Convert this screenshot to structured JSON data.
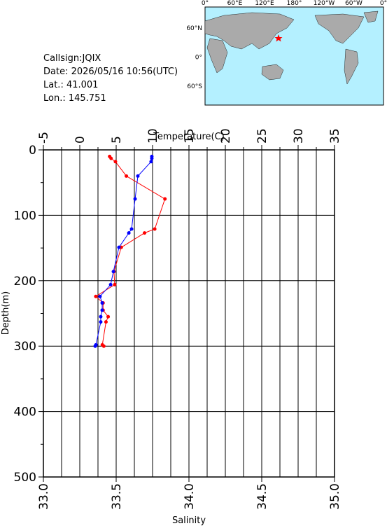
{
  "station": {
    "lines": [
      "Callsign:JQIX",
      "Date:  2026/05/16 10:56(UTC)",
      "Lat.:  41.001",
      "Lon.:  145.751"
    ]
  },
  "map": {
    "lon_labels": [
      "0°",
      "60°E",
      "120°E",
      "180°",
      "120°W",
      "60°W",
      "0°"
    ],
    "lat_labels": [
      "60°N",
      "0°",
      "60°S"
    ]
  },
  "chart_data": {
    "type": "profile",
    "xlabel": "Salinity",
    "x2label": "Temperature(C)",
    "ylabel": "Depth(m)",
    "y": [
      10,
      13,
      18,
      40,
      75,
      121,
      127,
      149,
      186,
      206,
      224,
      234,
      245,
      255,
      263,
      298,
      300
    ],
    "ylim": [
      0,
      500
    ],
    "yticks": [
      0,
      100,
      200,
      300,
      400,
      500
    ],
    "yminorticks": [
      50,
      150,
      250,
      350,
      450
    ],
    "y_inverted": true,
    "xlim": [
      33,
      35
    ],
    "xticks": [
      {
        "value": 33,
        "label": "33.0"
      },
      {
        "value": 33.5,
        "label": "33.5"
      },
      {
        "value": 34,
        "label": "34.0"
      },
      {
        "value": 34.5,
        "label": "34.5"
      },
      {
        "value": 35,
        "label": "35.0"
      }
    ],
    "x2lim": [
      -5,
      35
    ],
    "x2ticks": [
      -5,
      0,
      5,
      10,
      15,
      20,
      25,
      30,
      35
    ],
    "x2minorticks": [
      -2.5,
      2.5,
      7.5,
      12.5,
      17.5,
      22.5,
      27.5,
      32.5
    ],
    "grid": true,
    "series": [
      {
        "color": "#ff0000",
        "axis": "x2",
        "values": [
          4.1,
          4.3,
          4.9,
          6.4,
          11.7,
          10.3,
          8.9,
          5.7,
          4.7,
          4.8,
          2.2,
          3.2,
          3.2,
          3.9,
          3.6,
          3.1,
          3.3
        ]
      },
      {
        "color": "#0000ff",
        "axis": "x",
        "values": [
          33.745,
          33.745,
          33.74,
          33.649,
          33.63,
          33.606,
          33.587,
          33.519,
          33.481,
          33.462,
          33.389,
          33.404,
          33.404,
          33.394,
          33.394,
          33.361,
          33.356
        ]
      }
    ]
  }
}
